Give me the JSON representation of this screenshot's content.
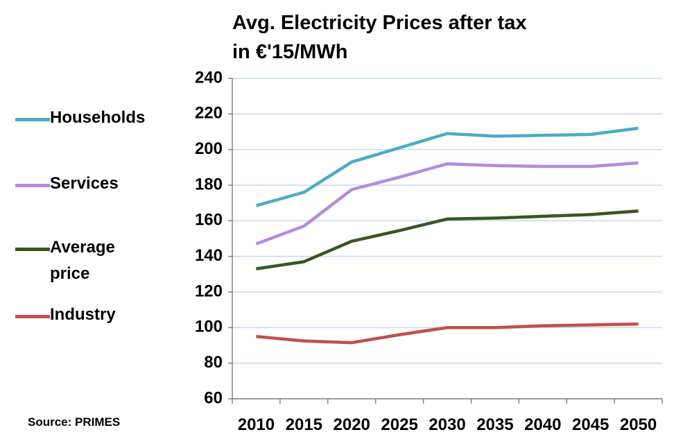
{
  "chart_data": {
    "type": "line",
    "title": [
      "Avg. Electricity Prices after tax",
      "in €'15/MWh"
    ],
    "categories": [
      "2010",
      "2015",
      "2020",
      "2025",
      "2030",
      "2035",
      "2040",
      "2045",
      "2050"
    ],
    "series": [
      {
        "name": "Households",
        "color": "#4bacc6",
        "values": [
          168.5,
          176,
          193,
          201,
          209,
          207.5,
          208,
          208.5,
          212
        ]
      },
      {
        "name": "Services",
        "color": "#b48be0",
        "values": [
          147,
          157,
          177.5,
          184.5,
          192,
          191,
          190.5,
          190.5,
          192.5
        ]
      },
      {
        "name": "Average price",
        "color": "#375623",
        "values": [
          133,
          137,
          148.5,
          154.5,
          161,
          161.5,
          162.5,
          163.5,
          165.5
        ]
      },
      {
        "name": "Industry",
        "color": "#c0504d",
        "values": [
          95,
          92.5,
          91.5,
          96,
          100,
          100,
          101,
          101.5,
          102
        ]
      }
    ],
    "ylim": [
      60,
      240
    ],
    "yticks": [
      60,
      80,
      100,
      120,
      140,
      160,
      180,
      200,
      220,
      240
    ],
    "grid": true,
    "legend": "left",
    "source": "Source: PRIMES"
  }
}
